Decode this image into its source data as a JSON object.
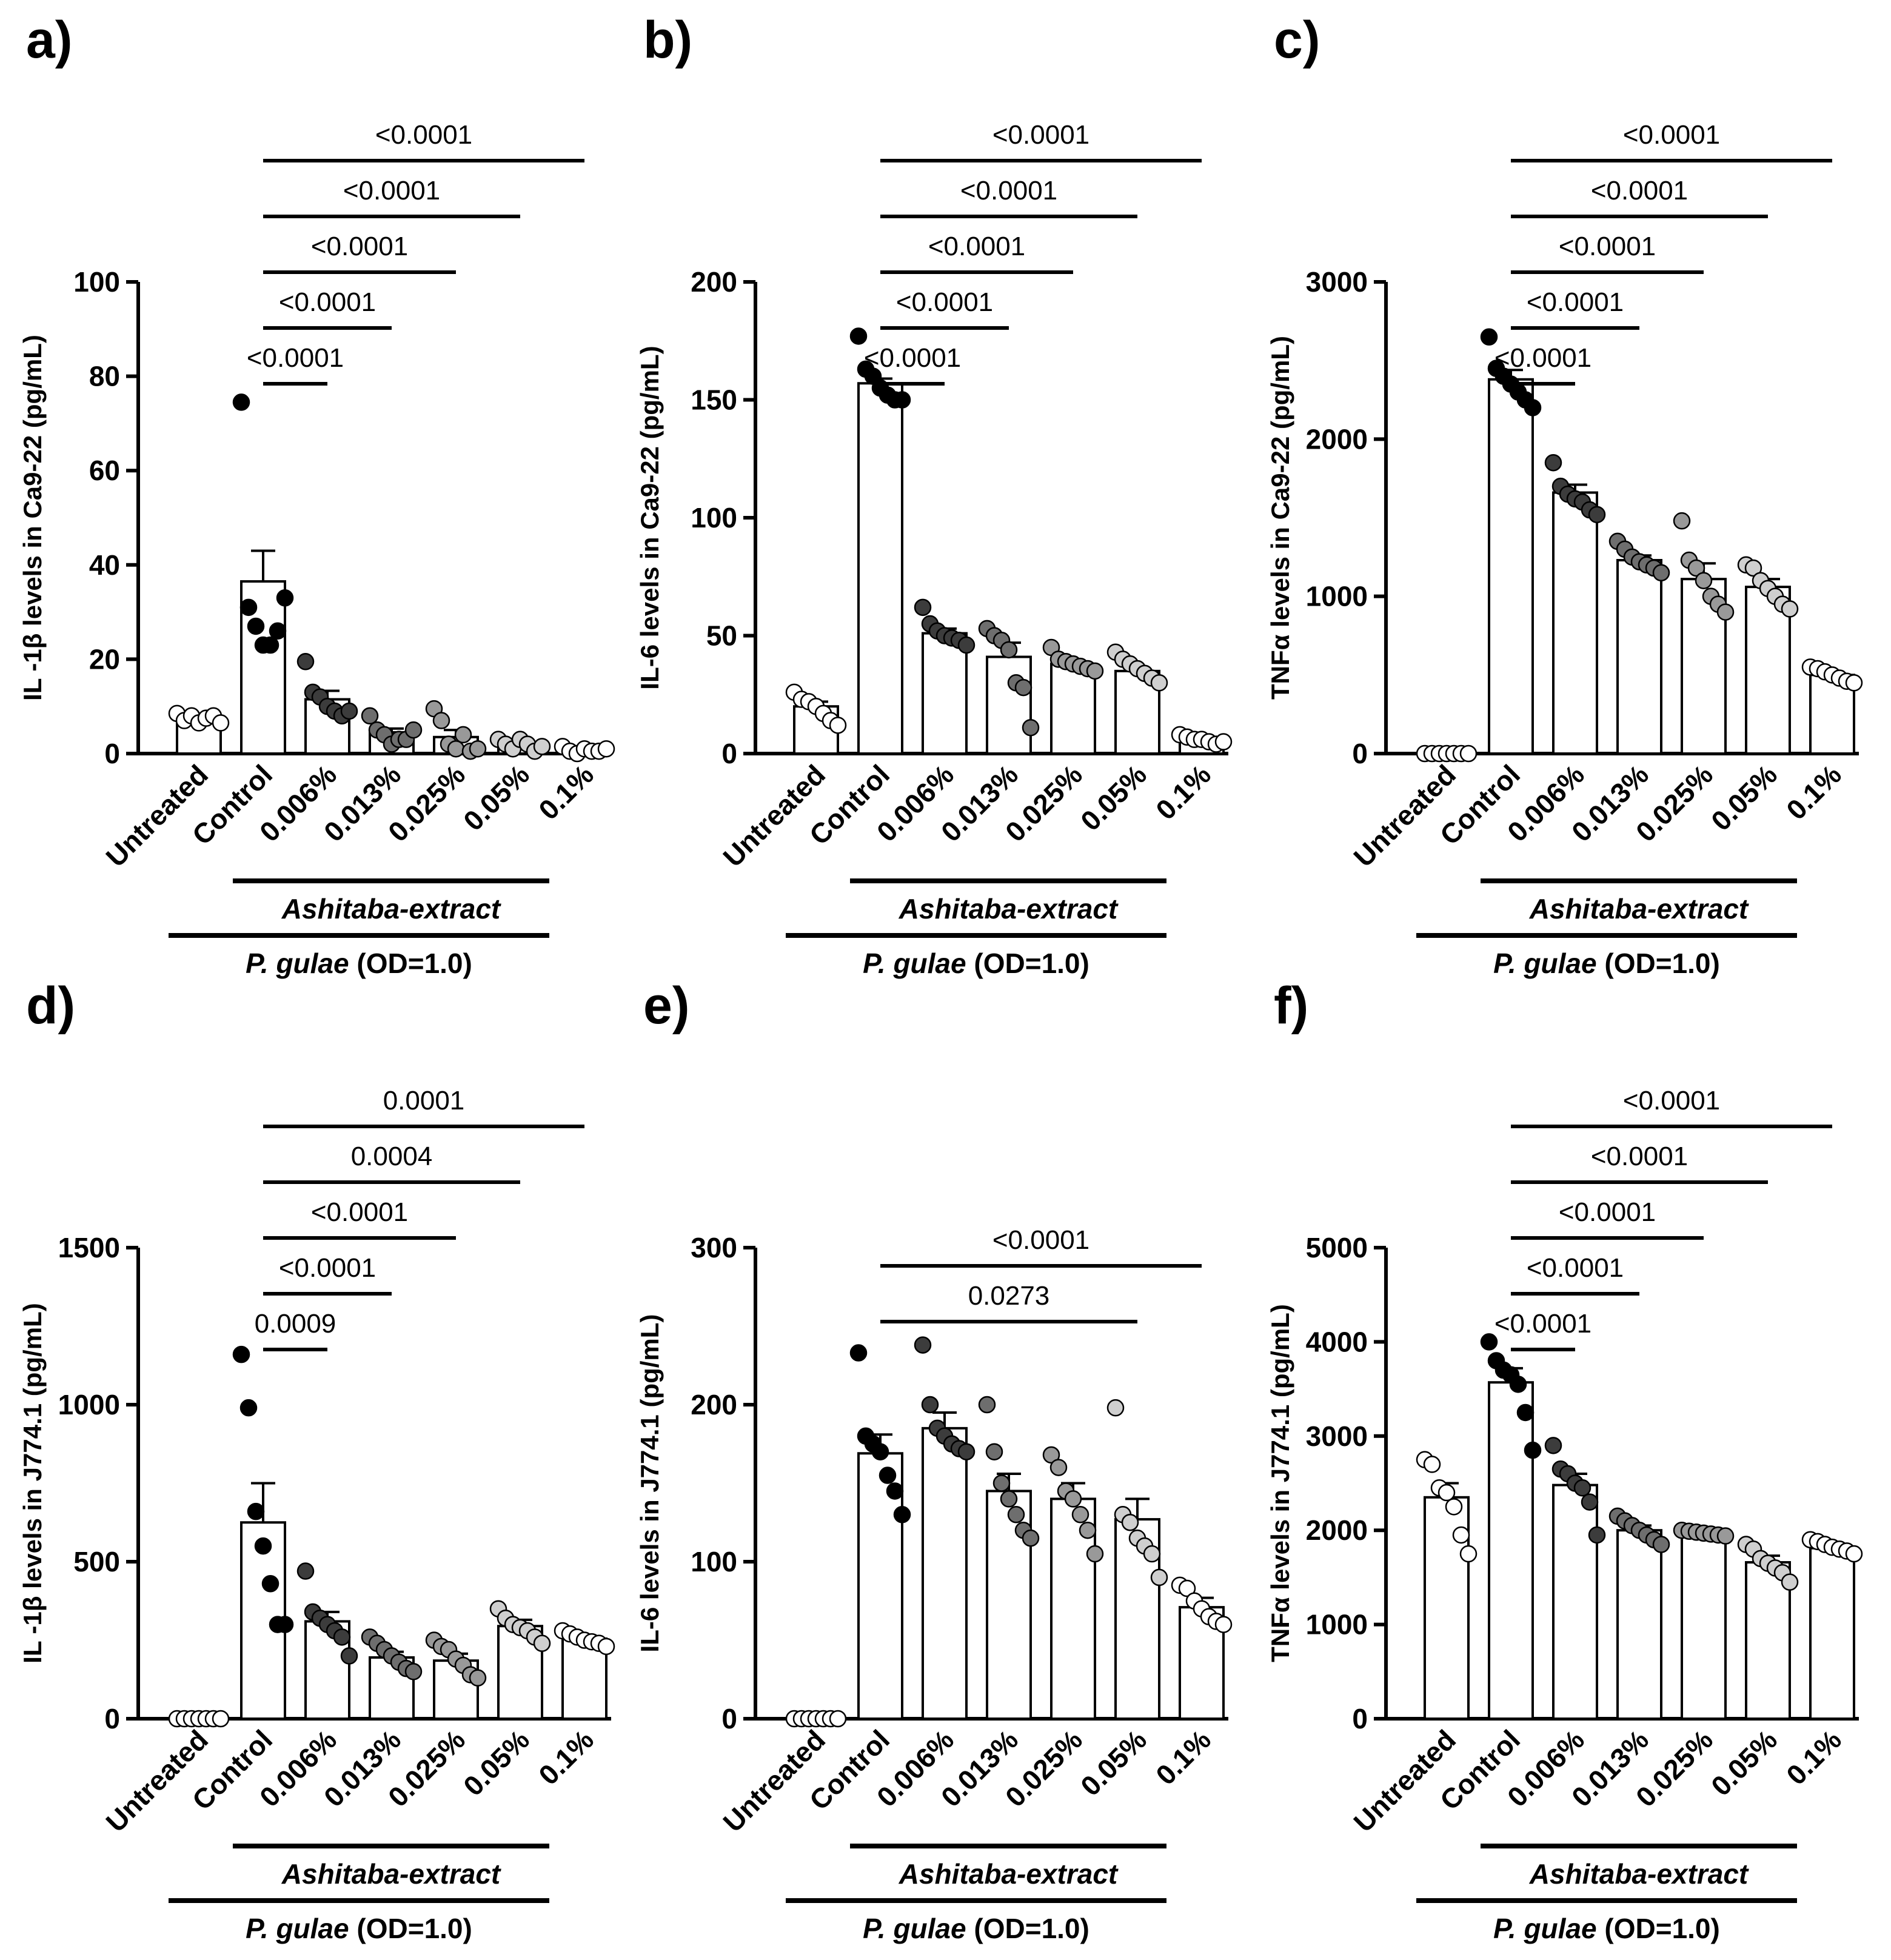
{
  "groups": [
    "Untreated",
    "Control",
    "0.006%",
    "0.013%",
    "0.025%",
    "0.05%",
    "0.1%"
  ],
  "group_fill": [
    "#ffffff",
    "#000000",
    "#3c3c3c",
    "#6e6e6e",
    "#999999",
    "#cfcfcf",
    "#ffffff"
  ],
  "extract_label": "Ashitaba-extract",
  "bacteria_label_italic": "P. gulae",
  "bacteria_label_rest": " (OD=1.0)",
  "chart_data": [
    {
      "type": "bar",
      "panel": "a)",
      "ylabel": "IL -1β levels in Ca9-22 (pg/mL)",
      "ylim": [
        0,
        100
      ],
      "yticks": [
        0,
        20,
        40,
        60,
        80,
        100
      ],
      "categories": [
        "Untreated",
        "Control",
        "0.006%",
        "0.013%",
        "0.025%",
        "0.05%",
        "0.1%"
      ],
      "values": [
        7.5,
        36.5,
        11.5,
        4.5,
        3.5,
        2,
        1
      ],
      "sem": [
        0.5,
        6.5,
        1.8,
        0.8,
        1.5,
        0.4,
        0.2
      ],
      "points": [
        [
          8.5,
          7,
          8,
          6.5,
          7.5,
          8,
          6.5
        ],
        [
          74.5,
          31,
          27,
          23,
          23,
          26,
          33
        ],
        [
          19.5,
          13,
          12,
          10,
          9,
          8,
          9
        ],
        [
          8,
          5,
          4,
          2,
          3,
          3,
          5
        ],
        [
          9.5,
          7,
          2,
          1,
          4,
          0.5,
          1
        ],
        [
          3,
          2,
          1,
          3,
          2,
          0.5,
          1.5
        ],
        [
          1.5,
          0.5,
          0,
          1,
          0.5,
          0.5,
          1
        ]
      ],
      "comparisons": [
        {
          "from": 1,
          "to": 2,
          "label": "<0.0001"
        },
        {
          "from": 1,
          "to": 3,
          "label": "<0.0001"
        },
        {
          "from": 1,
          "to": 4,
          "label": "<0.0001"
        },
        {
          "from": 1,
          "to": 5,
          "label": "<0.0001"
        },
        {
          "from": 1,
          "to": 6,
          "label": "<0.0001"
        }
      ]
    },
    {
      "type": "bar",
      "panel": "b)",
      "ylabel": "IL-6 levels in Ca9-22 (pg/mL)",
      "ylim": [
        0,
        200
      ],
      "yticks": [
        0,
        50,
        100,
        150,
        200
      ],
      "categories": [
        "Untreated",
        "Control",
        "0.006%",
        "0.013%",
        "0.025%",
        "0.05%",
        "0.1%"
      ],
      "values": [
        20,
        157,
        51,
        41,
        38,
        35,
        6
      ],
      "sem": [
        2,
        2,
        2,
        6,
        1.5,
        1.5,
        0.8
      ],
      "points": [
        [
          26,
          23,
          22,
          20,
          17,
          14,
          12
        ],
        [
          177,
          163,
          160,
          155,
          152,
          150,
          150
        ],
        [
          62,
          55,
          52,
          50,
          49,
          48,
          46
        ],
        [
          53,
          50,
          48,
          44,
          30,
          28,
          11
        ],
        [
          45,
          40,
          39,
          38,
          37,
          36,
          35
        ],
        [
          43,
          40,
          38,
          36,
          34,
          32,
          30
        ],
        [
          8,
          7,
          6,
          6,
          5,
          4,
          5
        ]
      ],
      "comparisons": [
        {
          "from": 1,
          "to": 2,
          "label": "<0.0001"
        },
        {
          "from": 1,
          "to": 3,
          "label": "<0.0001"
        },
        {
          "from": 1,
          "to": 4,
          "label": "<0.0001"
        },
        {
          "from": 1,
          "to": 5,
          "label": "<0.0001"
        },
        {
          "from": 1,
          "to": 6,
          "label": "<0.0001"
        }
      ]
    },
    {
      "type": "bar",
      "panel": "c)",
      "ylabel": "TNFα levels in Ca9-22 (pg/mL)",
      "ylim": [
        0,
        3000
      ],
      "yticks": [
        0,
        1000,
        2000,
        3000
      ],
      "categories": [
        "Untreated",
        "Control",
        "0.006%",
        "0.013%",
        "0.025%",
        "0.05%",
        "0.1%"
      ],
      "values": [
        5,
        2380,
        1660,
        1230,
        1110,
        1060,
        500
      ],
      "sem": [
        2,
        60,
        50,
        30,
        100,
        50,
        20
      ],
      "points": [
        [
          0,
          0,
          0,
          0,
          0,
          0,
          0
        ],
        [
          2650,
          2450,
          2400,
          2350,
          2300,
          2250,
          2200
        ],
        [
          1850,
          1700,
          1650,
          1620,
          1600,
          1550,
          1520
        ],
        [
          1350,
          1300,
          1250,
          1220,
          1200,
          1180,
          1150
        ],
        [
          1480,
          1230,
          1180,
          1100,
          1000,
          950,
          900
        ],
        [
          1200,
          1180,
          1100,
          1050,
          1000,
          950,
          920
        ],
        [
          550,
          540,
          520,
          500,
          480,
          460,
          450
        ]
      ],
      "comparisons": [
        {
          "from": 1,
          "to": 2,
          "label": "<0.0001"
        },
        {
          "from": 1,
          "to": 3,
          "label": "<0.0001"
        },
        {
          "from": 1,
          "to": 4,
          "label": "<0.0001"
        },
        {
          "from": 1,
          "to": 5,
          "label": "<0.0001"
        },
        {
          "from": 1,
          "to": 6,
          "label": "<0.0001"
        }
      ]
    },
    {
      "type": "bar",
      "panel": "d)",
      "ylabel": "IL -1β levels in J774.1 (pg/mL)",
      "ylim": [
        0,
        1500
      ],
      "yticks": [
        0,
        500,
        1000,
        1500
      ],
      "categories": [
        "Untreated",
        "Control",
        "0.006%",
        "0.013%",
        "0.025%",
        "0.05%",
        "0.1%"
      ],
      "values": [
        3,
        625,
        310,
        195,
        185,
        295,
        255
      ],
      "sem": [
        1,
        125,
        30,
        18,
        22,
        20,
        10
      ],
      "points": [
        [
          0,
          0,
          0,
          0,
          0,
          0,
          0
        ],
        [
          1160,
          990,
          660,
          550,
          430,
          300,
          300
        ],
        [
          470,
          340,
          320,
          300,
          280,
          260,
          200
        ],
        [
          260,
          240,
          220,
          200,
          180,
          160,
          150
        ],
        [
          250,
          230,
          220,
          190,
          170,
          140,
          130
        ],
        [
          350,
          320,
          300,
          290,
          280,
          260,
          240
        ],
        [
          280,
          270,
          260,
          250,
          245,
          240,
          230
        ]
      ],
      "comparisons": [
        {
          "from": 1,
          "to": 2,
          "label": "0.0009"
        },
        {
          "from": 1,
          "to": 3,
          "label": "<0.0001"
        },
        {
          "from": 1,
          "to": 4,
          "label": "<0.0001"
        },
        {
          "from": 1,
          "to": 5,
          "label": "0.0004"
        },
        {
          "from": 1,
          "to": 6,
          "label": "0.0001"
        }
      ]
    },
    {
      "type": "bar",
      "panel": "e)",
      "ylabel": "IL-6 levels in J774.1 (pg/mL)",
      "ylim": [
        0,
        300
      ],
      "yticks": [
        0,
        100,
        200,
        300
      ],
      "categories": [
        "Untreated",
        "Control",
        "0.006%",
        "0.013%",
        "0.025%",
        "0.05%",
        "0.1%"
      ],
      "values": [
        0,
        169,
        185,
        145,
        140,
        127,
        71
      ],
      "sem": [
        0,
        12,
        10,
        11,
        10,
        13,
        6
      ],
      "points": [
        [
          0,
          0,
          0,
          0,
          0,
          0,
          0
        ],
        [
          233,
          180,
          175,
          170,
          155,
          145,
          130
        ],
        [
          238,
          200,
          185,
          180,
          175,
          172,
          170
        ],
        [
          200,
          170,
          150,
          140,
          130,
          120,
          115
        ],
        [
          168,
          160,
          145,
          140,
          130,
          120,
          105
        ],
        [
          198,
          130,
          125,
          115,
          110,
          105,
          90
        ],
        [
          85,
          83,
          75,
          70,
          65,
          62,
          60
        ]
      ],
      "comparisons": [
        {
          "from": 1,
          "to": 5,
          "label": "0.0273"
        },
        {
          "from": 1,
          "to": 6,
          "label": "<0.0001"
        }
      ]
    },
    {
      "type": "bar",
      "panel": "f)",
      "ylabel": "TNFα levels in J774.1 (pg/mL)",
      "ylim": [
        0,
        5000
      ],
      "yticks": [
        0,
        1000,
        2000,
        3000,
        4000,
        5000
      ],
      "categories": [
        "Untreated",
        "Control",
        "0.006%",
        "0.013%",
        "0.025%",
        "0.05%",
        "0.1%"
      ],
      "values": [
        2350,
        3570,
        2480,
        2000,
        1970,
        1660,
        1810
      ],
      "sem": [
        150,
        150,
        120,
        50,
        20,
        70,
        40
      ],
      "points": [
        [
          2750,
          2700,
          2450,
          2400,
          2250,
          1950,
          1750
        ],
        [
          4000,
          3800,
          3700,
          3650,
          3550,
          3250,
          2850
        ],
        [
          2900,
          2650,
          2600,
          2500,
          2450,
          2300,
          1950
        ],
        [
          2150,
          2100,
          2050,
          2000,
          1950,
          1900,
          1850
        ],
        [
          2000,
          1990,
          1980,
          1970,
          1960,
          1950,
          1940
        ],
        [
          1850,
          1800,
          1700,
          1650,
          1600,
          1550,
          1450
        ],
        [
          1900,
          1880,
          1850,
          1820,
          1800,
          1780,
          1750
        ]
      ],
      "comparisons": [
        {
          "from": 1,
          "to": 2,
          "label": "<0.0001"
        },
        {
          "from": 1,
          "to": 3,
          "label": "<0.0001"
        },
        {
          "from": 1,
          "to": 4,
          "label": "<0.0001"
        },
        {
          "from": 1,
          "to": 5,
          "label": "<0.0001"
        },
        {
          "from": 1,
          "to": 6,
          "label": "<0.0001"
        }
      ]
    }
  ]
}
